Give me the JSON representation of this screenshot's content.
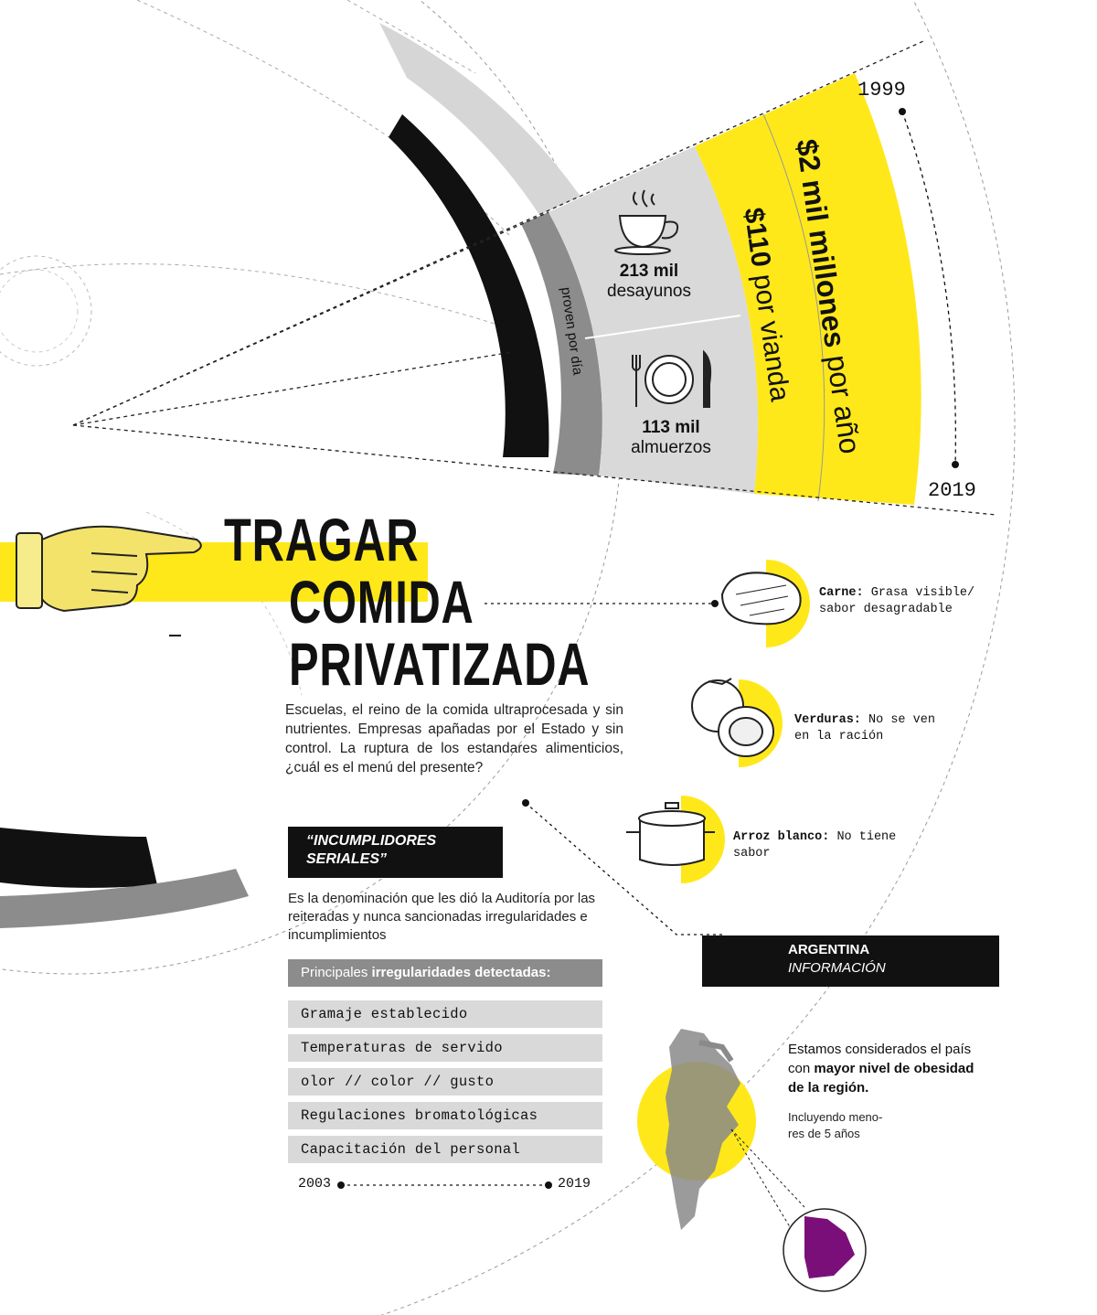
{
  "infographic": {
    "years_arc": {
      "start": "1999",
      "end": "2019"
    },
    "budget_per_year": {
      "amount": "$2 mil millones",
      "suffix": "por año"
    },
    "price_per_meal": {
      "amount": "$110",
      "suffix": "por vianda"
    },
    "daily_label": "proven por día",
    "breakfasts": {
      "count": "213 mil",
      "label": "desayunos"
    },
    "lunches": {
      "count": "113 mil",
      "label": "almuerzos"
    },
    "title": [
      "TRAGAR",
      "COMIDA",
      "PRIVATIZADA"
    ],
    "intro": "Escuelas, el reino de la comida ultraprocesada y sin nutrientes. Empresas apañadas por el Estado y sin control. La ruptura de los estandares alimenticios, ¿cuál es el menú del presente?",
    "serial": {
      "heading_line1": "“INCUMPLIDORES",
      "heading_line2": "SERIALES”",
      "text": "Es la denominación que les dió la Auditoría por las reiteradas y nunca sancionadas irregularidades e incumplimientos"
    },
    "irregularities": {
      "heading_plain": "Principales ",
      "heading_bold": "irregularidades detectadas:",
      "items": [
        "Gramaje establecido",
        "Temperaturas de servido",
        "olor // color // gusto",
        "Regulaciones bromatológicas",
        "Capacitación del personal"
      ],
      "period_start": "2003",
      "period_end": "2019"
    },
    "foods": [
      {
        "name": "Carne:",
        "text": "Grasa visible/",
        "text2": "sabor desagradable"
      },
      {
        "name": "Verduras:",
        "text": "No se ven",
        "text2": "en la ración"
      },
      {
        "name": "Arroz blanco:",
        "text": "No tiene",
        "text2": "sabor"
      }
    ],
    "argentina": {
      "heading": "ARGENTINA",
      "subheading": "INFORMACIÓN",
      "text_plain": "Estamos considerados el país con ",
      "text_bold": "mayor nivel de obesidad de la región.",
      "note": "Incluyendo menores de 5 años",
      "note_line1": "Incluyendo meno-",
      "note_line2": "res de 5 años"
    },
    "colors": {
      "yellow": "#ffe81a",
      "black": "#111111",
      "gray": "#8c8c8c",
      "lightgray": "#d9d9d9",
      "purple": "#7a0f7a"
    },
    "icons": [
      "coffee-cup-icon",
      "plate-cutlery-icon",
      "pointing-hand-icon",
      "steak-icon",
      "tomato-icon",
      "pot-icon",
      "argentina-map-icon",
      "buenos-aires-map-icon"
    ]
  }
}
